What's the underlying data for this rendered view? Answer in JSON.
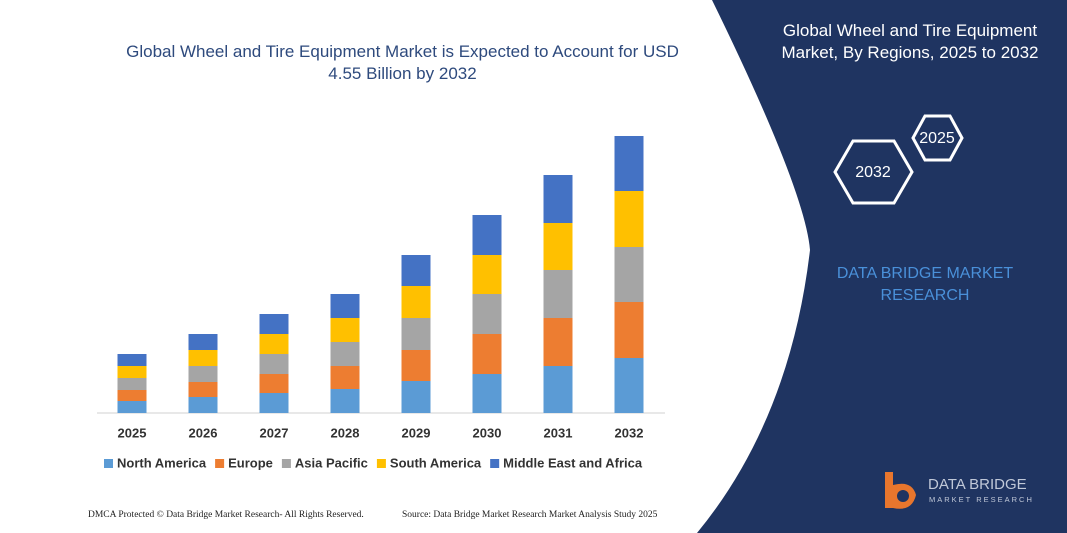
{
  "chart_data": {
    "type": "stacked-bar",
    "title": "Global Wheel and Tire Equipment Market is Expected to Account for USD 4.55 Billion by 2032",
    "categories": [
      "2025",
      "2026",
      "2027",
      "2028",
      "2029",
      "2030",
      "2031",
      "2032"
    ],
    "series": [
      {
        "name": "North America",
        "color": "#5b9bd5",
        "values": [
          12,
          16,
          20,
          24,
          32,
          39,
          47,
          55
        ]
      },
      {
        "name": "Europe",
        "color": "#ed7d31",
        "values": [
          11,
          15,
          19,
          23,
          31,
          40,
          48,
          56
        ]
      },
      {
        "name": "Asia Pacific",
        "color": "#a5a5a5",
        "values": [
          12,
          16,
          20,
          24,
          32,
          40,
          48,
          55
        ]
      },
      {
        "name": "South America",
        "color": "#ffc000",
        "values": [
          12,
          16,
          20,
          24,
          32,
          39,
          47,
          56
        ]
      },
      {
        "name": "Middle East and Africa",
        "color": "#4472c4",
        "values": [
          12,
          16,
          20,
          24,
          31,
          40,
          48,
          55
        ]
      }
    ],
    "ylim": [
      0,
      280
    ],
    "legend": "bottom"
  },
  "panel": {
    "title": "Global Wheel and Tire Equipment Market, By Regions, 2025 to 2032",
    "hex_start": "2025",
    "hex_end": "2032",
    "brand": "DATA BRIDGE MARKET RESEARCH"
  },
  "logo": {
    "name": "DATA BRIDGE",
    "tagline": "MARKET RESEARCH"
  },
  "footer": {
    "left": "DMCA Protected © Data Bridge Market Research- All Rights Reserved.",
    "right": "Source: Data Bridge Market Research  Market Analysis Study 2025"
  }
}
